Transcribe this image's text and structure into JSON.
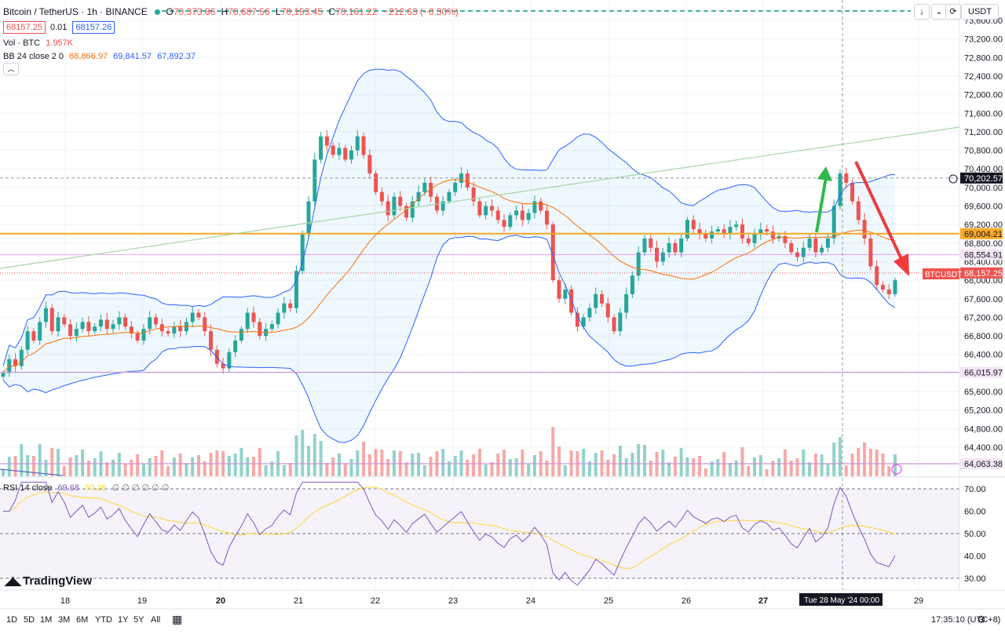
{
  "header": {
    "symbol_title": "Bitcoin / TetherUS · 1h · BINANCE",
    "open_label": "O",
    "open": "70,373.86",
    "high_label": "H",
    "high": "70,687.56",
    "low_label": "L",
    "low": "70,153.45",
    "close_label": "C",
    "close": "70,161.22",
    "change": "−212.63 (−0.30%)"
  },
  "trade": {
    "sell_price": "68157.25",
    "spread": "0.01",
    "buy_price": "68157.26"
  },
  "legends": {
    "vol_label": "Vol · BTC",
    "vol_value": "1.957K",
    "bb_label": "BB 24 close 2 0",
    "bb_basis": "68,866.97",
    "bb_upper": "69,841.57",
    "bb_lower": "67,892.37",
    "rsi_label": "RSI 14 close",
    "rsi_value": "69.68",
    "rsi_ma": "50.26",
    "rsi_extra": "∅ ∅ ∅ ∅ ∅ ∅"
  },
  "currency_button": "USDT",
  "price_axis": [
    "73,600.00",
    "73,200.00",
    "72,800.00",
    "72,400.00",
    "72,000.00",
    "71,600.00",
    "71,200.00",
    "70,800.00",
    "70,400.00",
    "70,000.00",
    "69,600.00",
    "69,200.00",
    "68,800.00",
    "68,400.00",
    "68,000.00",
    "67,600.00",
    "67,200.00",
    "66,800.00",
    "66,400.00",
    "66,000.00",
    "65,600.00",
    "65,200.00",
    "64,800.00",
    "64,400.00"
  ],
  "rsi_axis": [
    "70.00",
    "60.00",
    "50.00",
    "40.00",
    "30.00"
  ],
  "price_labels": {
    "crosshair": "70,202.57",
    "level_orange": "69,004.21",
    "level_pink": "68,554.91",
    "symbol_tag": "BTCUSDT",
    "last_price": "68,157.25",
    "level_purple": "66,015.97",
    "level_bottom": "64,063.38"
  },
  "time_axis": [
    "18",
    "19",
    "20",
    "21",
    "22",
    "23",
    "24",
    "25",
    "26",
    "27",
    "29"
  ],
  "crosshair_time": "Tue 28 May '24   00:00",
  "ranges": [
    "1D",
    "5D",
    "1M",
    "3M",
    "6M",
    "YTD",
    "1Y",
    "5Y",
    "All"
  ],
  "clock": "17:35:10 (UTC+8)",
  "logo_text": "TradingView",
  "colors": {
    "up": "#26a69a",
    "down": "#ef5350",
    "bb": "#2962ff",
    "basis": "#ff6d00",
    "orange_line": "#f9a825",
    "rsi": "#7e57c2",
    "rsi_ma": "#fdd835",
    "arrow_up": "#2eb94a",
    "arrow_down": "#ef3b3b"
  },
  "chart_data": {
    "type": "candlestick",
    "price_range": [
      64000,
      73800
    ],
    "rsi_range": [
      25,
      73
    ],
    "x_ticks": {
      "18": 83,
      "19": 181,
      "20": 281,
      "21": 380,
      "22": 478,
      "23": 577,
      "24": 676,
      "25": 775,
      "26": 874,
      "27": 972,
      "29": 1170
    },
    "closes_hourly": [
      66000,
      66300,
      66150,
      66500,
      66900,
      66700,
      67100,
      67400,
      66900,
      67200,
      67050,
      66800,
      66950,
      67100,
      66900,
      67000,
      67150,
      66950,
      67050,
      67200,
      67000,
      66850,
      66700,
      66950,
      67200,
      67050,
      66900,
      66850,
      67000,
      66900,
      67100,
      67300,
      67200,
      66900,
      66500,
      66200,
      66100,
      66450,
      66700,
      66950,
      67300,
      67100,
      66800,
      66950,
      67050,
      67300,
      67500,
      67400,
      68200,
      69000,
      69700,
      70600,
      71100,
      70900,
      70700,
      70850,
      70600,
      70800,
      71100,
      70700,
      70300,
      69900,
      69700,
      69400,
      69800,
      69600,
      69350,
      69700,
      69900,
      70100,
      69800,
      69500,
      69700,
      69900,
      70100,
      70300,
      70000,
      69700,
      69400,
      69600,
      69500,
      69300,
      69150,
      69400,
      69500,
      69300,
      69450,
      69700,
      69500,
      69200,
      68000,
      67600,
      67800,
      67300,
      67000,
      67200,
      67400,
      67700,
      67500,
      67200,
      66900,
      67300,
      67700,
      68100,
      68600,
      68900,
      68700,
      68400,
      68600,
      68800,
      68600,
      68900,
      69300,
      69100,
      69000,
      68900,
      69050,
      69100,
      69000,
      69150,
      69200,
      68900,
      68800,
      69000,
      69100,
      69050,
      68900,
      68950,
      68800,
      68600,
      68500,
      68700,
      68900,
      68600,
      68700,
      68900,
      69600,
      70300,
      70100,
      69700,
      69300,
      68900,
      68300,
      67900,
      67800,
      67700,
      68000
    ]
  }
}
